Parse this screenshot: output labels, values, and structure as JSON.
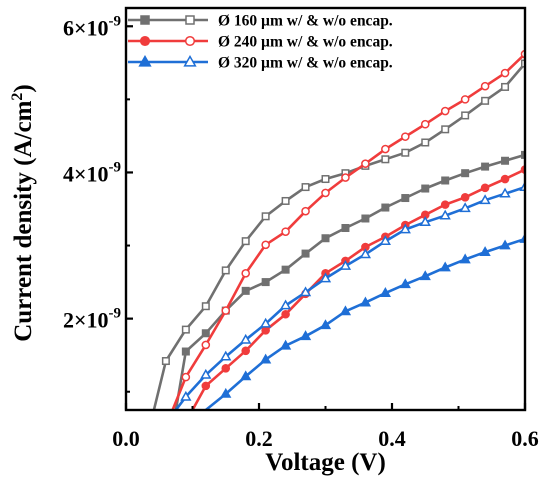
{
  "chart_data": {
    "type": "line",
    "xlabel": "Voltage (V)",
    "ylabel_main": "Current density (A/cm",
    "ylabel_sup": "2",
    "ylabel_tail": ")",
    "xlim": [
      0.0,
      0.6
    ],
    "ylim": [
      7.5e-10,
      6.25e-09
    ],
    "x_ticks": [
      {
        "value": 0.0,
        "label": "0.0"
      },
      {
        "value": 0.2,
        "label": "0.2"
      },
      {
        "value": 0.4,
        "label": "0.4"
      },
      {
        "value": 0.6,
        "label": "0.6"
      }
    ],
    "y_ticks": [
      {
        "value": 2e-09,
        "base": "2×10",
        "exp": "-9"
      },
      {
        "value": 4e-09,
        "base": "4×10",
        "exp": "-9"
      },
      {
        "value": 6e-09,
        "base": "6×10",
        "exp": "-9"
      }
    ],
    "legend_position": "top-left",
    "legend": [
      {
        "label": "Ø 160 µm w/ & w/o encap.",
        "color": "#707070",
        "marker": "square"
      },
      {
        "label": "Ø 240 µm w/ & w/o encap.",
        "color": "#f03c3c",
        "marker": "circle"
      },
      {
        "label": "Ø 320 µm w/ & w/o encap.",
        "color": "#1f6fd6",
        "marker": "triangle"
      }
    ],
    "series": [
      {
        "color": "#707070",
        "marker": "square",
        "filled": false,
        "x": [
          0.042,
          0.06,
          0.09,
          0.12,
          0.15,
          0.18,
          0.21,
          0.24,
          0.27,
          0.3,
          0.33,
          0.36,
          0.39,
          0.42,
          0.45,
          0.48,
          0.51,
          0.54,
          0.57,
          0.6
        ],
        "y": [
          7.5e-10,
          1.42e-09,
          1.85e-09,
          2.17e-09,
          2.66e-09,
          3.06e-09,
          3.4e-09,
          3.61e-09,
          3.8e-09,
          3.91e-09,
          3.99e-09,
          4.09e-09,
          4.18e-09,
          4.27e-09,
          4.41e-09,
          4.59e-09,
          4.78e-09,
          4.98e-09,
          5.17e-09,
          5.49e-09
        ]
      },
      {
        "color": "#707070",
        "marker": "square",
        "filled": true,
        "x": [
          0.075,
          0.09,
          0.12,
          0.15,
          0.18,
          0.21,
          0.24,
          0.27,
          0.3,
          0.33,
          0.36,
          0.39,
          0.42,
          0.45,
          0.48,
          0.51,
          0.54,
          0.57,
          0.6
        ],
        "y": [
          7.5e-10,
          1.55e-09,
          1.8e-09,
          2.11e-09,
          2.38e-09,
          2.5e-09,
          2.67e-09,
          2.89e-09,
          3.1e-09,
          3.24e-09,
          3.37e-09,
          3.52e-09,
          3.65e-09,
          3.78e-09,
          3.89e-09,
          3.99e-09,
          4.08e-09,
          4.16e-09,
          4.24e-09
        ]
      },
      {
        "color": "#f03c3c",
        "marker": "circle",
        "filled": false,
        "x": [
          0.07,
          0.09,
          0.12,
          0.15,
          0.18,
          0.21,
          0.24,
          0.27,
          0.3,
          0.33,
          0.36,
          0.39,
          0.42,
          0.45,
          0.48,
          0.51,
          0.54,
          0.57,
          0.6
        ],
        "y": [
          7.5e-10,
          1.2e-09,
          1.64e-09,
          2.11e-09,
          2.62e-09,
          3.01e-09,
          3.19e-09,
          3.47e-09,
          3.72e-09,
          3.93e-09,
          4.12e-09,
          4.32e-09,
          4.49e-09,
          4.66e-09,
          4.84e-09,
          5e-09,
          5.18e-09,
          5.36e-09,
          5.62e-09
        ]
      },
      {
        "color": "#f03c3c",
        "marker": "circle",
        "filled": true,
        "x": [
          0.1,
          0.12,
          0.15,
          0.18,
          0.21,
          0.24,
          0.27,
          0.3,
          0.33,
          0.36,
          0.39,
          0.42,
          0.45,
          0.48,
          0.51,
          0.54,
          0.57,
          0.6
        ],
        "y": [
          7.5e-10,
          1.08e-09,
          1.32e-09,
          1.56e-09,
          1.84e-09,
          2.06e-09,
          2.34e-09,
          2.62e-09,
          2.79e-09,
          2.98e-09,
          3.12e-09,
          3.28e-09,
          3.42e-09,
          3.56e-09,
          3.66e-09,
          3.79e-09,
          3.91e-09,
          4.04e-09
        ]
      },
      {
        "color": "#1f6fd6",
        "marker": "triangle",
        "filled": false,
        "x": [
          0.075,
          0.09,
          0.12,
          0.15,
          0.18,
          0.21,
          0.24,
          0.27,
          0.3,
          0.33,
          0.36,
          0.39,
          0.42,
          0.45,
          0.48,
          0.51,
          0.54,
          0.57,
          0.6
        ],
        "y": [
          7.5e-10,
          9.3e-10,
          1.23e-09,
          1.48e-09,
          1.71e-09,
          1.93e-09,
          2.18e-09,
          2.36e-09,
          2.55e-09,
          2.72e-09,
          2.88e-09,
          3.06e-09,
          3.22e-09,
          3.32e-09,
          3.41e-09,
          3.51e-09,
          3.62e-09,
          3.71e-09,
          3.8e-09
        ]
      },
      {
        "color": "#1f6fd6",
        "marker": "triangle",
        "filled": true,
        "x": [
          0.12,
          0.15,
          0.18,
          0.21,
          0.24,
          0.27,
          0.3,
          0.33,
          0.36,
          0.39,
          0.42,
          0.45,
          0.48,
          0.51,
          0.54,
          0.57,
          0.6
        ],
        "y": [
          7.5e-10,
          9.7e-10,
          1.21e-09,
          1.44e-09,
          1.63e-09,
          1.76e-09,
          1.91e-09,
          2.1e-09,
          2.22e-09,
          2.35e-09,
          2.47e-09,
          2.58e-09,
          2.7e-09,
          2.81e-09,
          2.91e-09,
          3e-09,
          3.09e-09
        ]
      }
    ]
  }
}
